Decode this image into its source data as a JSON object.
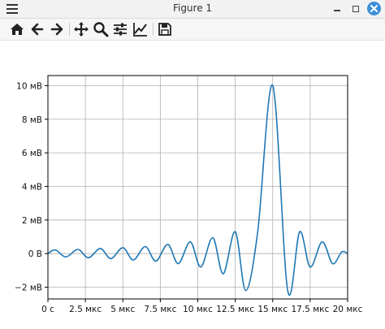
{
  "window": {
    "title": "Figure 1"
  },
  "toolbar": {
    "buttons": [
      {
        "name": "home-icon"
      },
      {
        "name": "back-arrow-icon"
      },
      {
        "name": "forward-arrow-icon"
      },
      {
        "name": "pan-icon"
      },
      {
        "name": "zoom-icon"
      },
      {
        "name": "subplots-config-icon"
      },
      {
        "name": "edit-axis-icon"
      },
      {
        "name": "save-icon"
      }
    ]
  },
  "colors": {
    "line": "#1f77b4",
    "grid": "#b0b0b0",
    "close_button": "#3d8fd9"
  },
  "chart_data": {
    "type": "line",
    "title": "",
    "xlabel": "",
    "ylabel": "",
    "grid": true,
    "xlim": [
      0,
      20
    ],
    "ylim": [
      -2.7,
      10.6
    ],
    "x_unit": "мкс",
    "y_unit": "мВ",
    "xticks": [
      {
        "value": 0,
        "label": "0 с"
      },
      {
        "value": 2.5,
        "label": "2.5 мкс"
      },
      {
        "value": 5,
        "label": "5 мкс"
      },
      {
        "value": 7.5,
        "label": "7.5 мкс"
      },
      {
        "value": 10,
        "label": "10 мкс"
      },
      {
        "value": 12.5,
        "label": "12.5 мкс"
      },
      {
        "value": 15,
        "label": "15 мкс"
      },
      {
        "value": 17.5,
        "label": "17.5 мкс"
      },
      {
        "value": 20,
        "label": "20 мкс"
      }
    ],
    "yticks": [
      {
        "value": -2,
        "label": "−2 мВ"
      },
      {
        "value": 0,
        "label": "0 В"
      },
      {
        "value": 2,
        "label": "2 мВ"
      },
      {
        "value": 4,
        "label": "4 мВ"
      },
      {
        "value": 6,
        "label": "6 мВ"
      },
      {
        "value": 8,
        "label": "8 мВ"
      },
      {
        "value": 10,
        "label": "10 мВ"
      }
    ],
    "series": [
      {
        "color": "#1f77b4",
        "x": [
          0,
          0.5,
          1.2,
          2.0,
          2.7,
          3.5,
          4.2,
          5.0,
          5.7,
          6.5,
          7.2,
          8.0,
          8.7,
          9.5,
          10.2,
          11.0,
          11.7,
          12.5,
          13.2,
          14.0,
          15.0,
          16.0,
          16.8,
          17.5,
          18.3,
          19.0,
          19.6,
          20.0
        ],
        "y": [
          0,
          0.22,
          -0.2,
          0.25,
          -0.25,
          0.3,
          -0.3,
          0.35,
          -0.38,
          0.42,
          -0.45,
          0.55,
          -0.6,
          0.7,
          -0.8,
          0.95,
          -1.2,
          1.3,
          -2.2,
          1.3,
          10.0,
          -2.2,
          1.3,
          -0.8,
          0.7,
          -0.6,
          0.1,
          0
        ]
      }
    ]
  }
}
